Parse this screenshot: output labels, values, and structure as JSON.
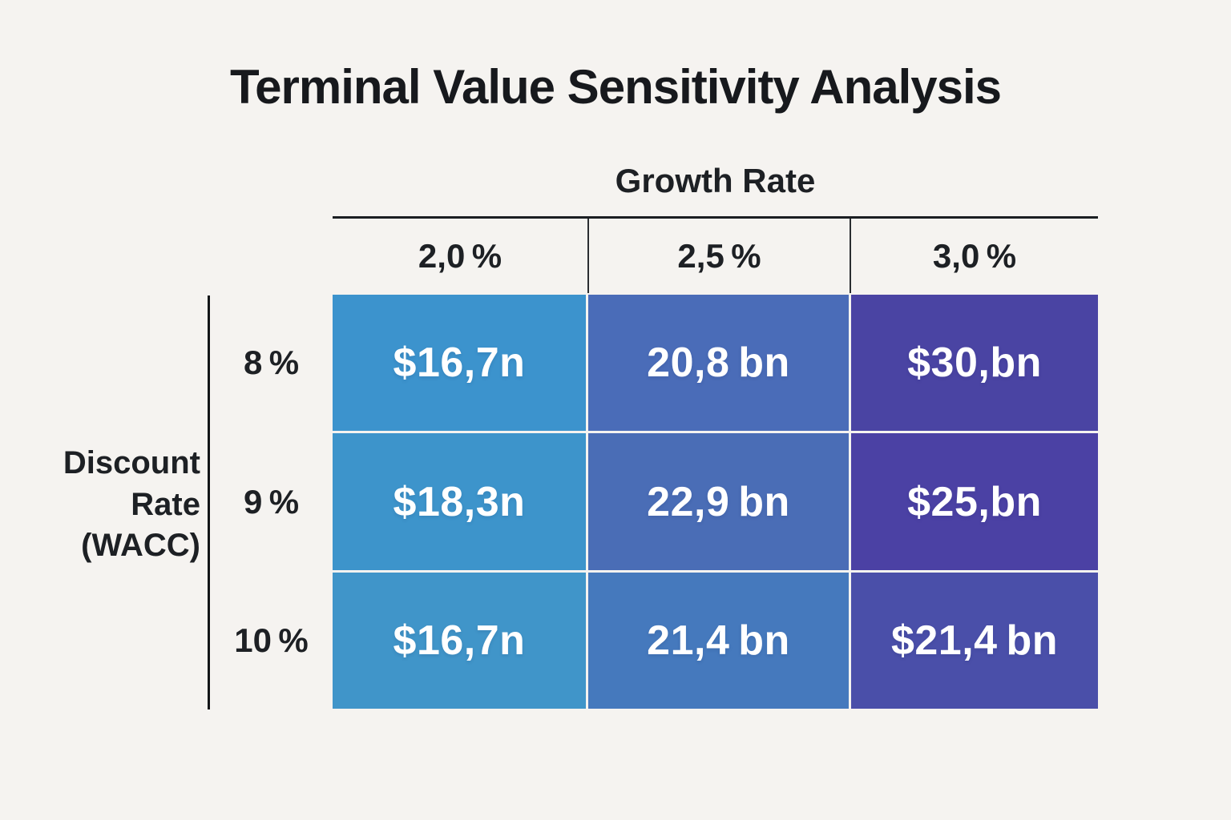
{
  "title": "Terminal Value Sensitivity Analysis",
  "colors": {
    "background": "#f5f3f0",
    "rule": "#1b1e22",
    "label_text": "#1d2024",
    "cell_text": "#ffffff"
  },
  "y_axis": {
    "label": "Discount Rate (WACC)",
    "label_display": "Discount\nRate\n(WACC)"
  },
  "x_axis": {
    "label": "Growth Rate"
  },
  "chart_data": {
    "type": "heatmap",
    "title": "Terminal Value Sensitivity Analysis",
    "xlabel": "Growth Rate",
    "ylabel": "Discount Rate (WACC)",
    "columns": [
      "2,0 %",
      "2,5 %",
      "3,0 %"
    ],
    "rows": [
      "8 %",
      "9 %",
      "10 %"
    ],
    "legend": "none",
    "grid": "thin rules between header cells; 3px light gaps between value cells",
    "cells": [
      [
        {
          "label": "$16,7n",
          "color": "#3C93CD"
        },
        {
          "label": "20,8 bn",
          "color": "#4A6CB8"
        },
        {
          "label": "$30,bn",
          "color": "#4A44A3"
        }
      ],
      [
        {
          "label": "$18,3n",
          "color": "#3D94CB"
        },
        {
          "label": "22,9 bn",
          "color": "#4A6DB6"
        },
        {
          "label": "$25,bn",
          "color": "#4B41A4"
        }
      ],
      [
        {
          "label": "$16,7n",
          "color": "#4095C9"
        },
        {
          "label": "21,4 bn",
          "color": "#4579BD"
        },
        {
          "label": "$21,4 bn",
          "color": "#4A4FA9"
        }
      ]
    ]
  }
}
